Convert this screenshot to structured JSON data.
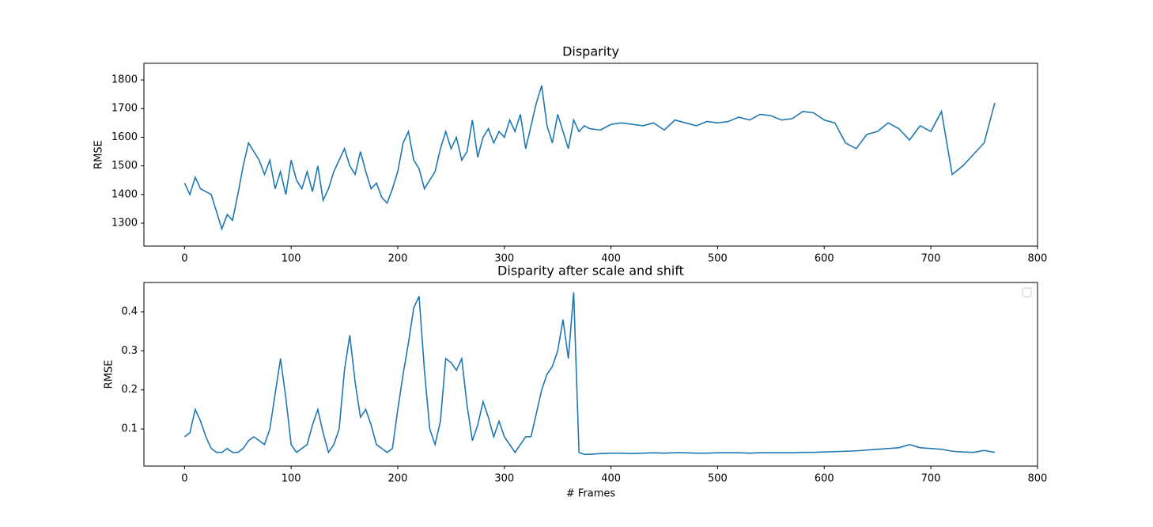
{
  "chart_data": [
    {
      "type": "line",
      "title": "Disparity",
      "y_label": "RMSE",
      "color": "#1f77b4",
      "xlim": [
        -38.1,
        800.1
      ],
      "xticks": [
        0,
        100,
        200,
        300,
        400,
        500,
        600,
        700,
        800
      ],
      "ylim": [
        1220,
        1858
      ],
      "yticks": [
        1300,
        1400,
        1500,
        1600,
        1700,
        1800
      ],
      "x": [
        0,
        5,
        10,
        15,
        20,
        25,
        30,
        35,
        40,
        45,
        50,
        55,
        60,
        65,
        70,
        75,
        80,
        85,
        90,
        95,
        100,
        105,
        110,
        115,
        120,
        125,
        130,
        135,
        140,
        145,
        150,
        155,
        160,
        165,
        170,
        175,
        180,
        185,
        190,
        195,
        200,
        205,
        210,
        215,
        220,
        225,
        230,
        235,
        240,
        245,
        250,
        255,
        260,
        265,
        270,
        275,
        280,
        285,
        290,
        295,
        300,
        305,
        310,
        315,
        320,
        325,
        330,
        335,
        340,
        345,
        350,
        355,
        360,
        365,
        370,
        375,
        380,
        390,
        400,
        410,
        420,
        430,
        440,
        450,
        460,
        470,
        480,
        490,
        500,
        510,
        520,
        530,
        540,
        550,
        560,
        570,
        580,
        590,
        600,
        610,
        620,
        630,
        640,
        650,
        660,
        670,
        680,
        690,
        700,
        710,
        720,
        730,
        740,
        750,
        760
      ],
      "values": [
        1440,
        1400,
        1460,
        1420,
        1410,
        1400,
        1340,
        1280,
        1330,
        1310,
        1400,
        1500,
        1580,
        1550,
        1520,
        1470,
        1520,
        1420,
        1480,
        1400,
        1520,
        1450,
        1420,
        1480,
        1410,
        1500,
        1380,
        1420,
        1480,
        1520,
        1560,
        1500,
        1470,
        1550,
        1480,
        1420,
        1440,
        1390,
        1370,
        1420,
        1480,
        1580,
        1620,
        1520,
        1490,
        1420,
        1450,
        1480,
        1560,
        1620,
        1560,
        1600,
        1520,
        1550,
        1660,
        1530,
        1600,
        1630,
        1580,
        1620,
        1600,
        1660,
        1620,
        1680,
        1560,
        1640,
        1720,
        1780,
        1640,
        1580,
        1680,
        1620,
        1560,
        1660,
        1620,
        1640,
        1630,
        1625,
        1645,
        1650,
        1645,
        1640,
        1650,
        1625,
        1660,
        1650,
        1640,
        1655,
        1650,
        1655,
        1670,
        1660,
        1680,
        1675,
        1660,
        1665,
        1690,
        1685,
        1660,
        1650,
        1580,
        1560,
        1610,
        1620,
        1650,
        1630,
        1590,
        1640,
        1620,
        1690,
        1470,
        1500,
        1540,
        1580,
        1720
      ]
    },
    {
      "type": "line",
      "title": "Disparity after scale and shift",
      "y_label": "RMSE",
      "x_label": "# Frames",
      "color": "#1f77b4",
      "legend": "upper right",
      "xlim": [
        -38.1,
        800.1
      ],
      "xticks": [
        0,
        100,
        200,
        300,
        400,
        500,
        600,
        700,
        800
      ],
      "ylim": [
        0.005,
        0.475
      ],
      "yticks": [
        0.1,
        0.2,
        0.3,
        0.4
      ],
      "x": [
        0,
        5,
        10,
        15,
        20,
        25,
        30,
        35,
        40,
        45,
        50,
        55,
        60,
        65,
        70,
        75,
        80,
        85,
        90,
        95,
        100,
        105,
        110,
        115,
        120,
        125,
        130,
        135,
        140,
        145,
        150,
        155,
        160,
        165,
        170,
        175,
        180,
        185,
        190,
        195,
        200,
        205,
        210,
        215,
        220,
        225,
        230,
        235,
        240,
        245,
        250,
        255,
        260,
        265,
        270,
        275,
        280,
        285,
        290,
        295,
        300,
        305,
        310,
        315,
        320,
        325,
        330,
        335,
        340,
        345,
        350,
        355,
        360,
        365,
        370,
        375,
        380,
        390,
        400,
        410,
        420,
        430,
        440,
        450,
        460,
        470,
        480,
        490,
        500,
        510,
        520,
        530,
        540,
        550,
        560,
        570,
        580,
        590,
        600,
        610,
        620,
        630,
        640,
        650,
        660,
        670,
        680,
        690,
        700,
        710,
        720,
        730,
        740,
        750,
        760
      ],
      "values": [
        0.08,
        0.09,
        0.15,
        0.12,
        0.08,
        0.05,
        0.04,
        0.04,
        0.05,
        0.04,
        0.04,
        0.05,
        0.07,
        0.08,
        0.07,
        0.06,
        0.1,
        0.19,
        0.28,
        0.18,
        0.06,
        0.04,
        0.05,
        0.06,
        0.11,
        0.15,
        0.09,
        0.04,
        0.06,
        0.1,
        0.25,
        0.34,
        0.22,
        0.13,
        0.15,
        0.11,
        0.06,
        0.05,
        0.04,
        0.05,
        0.15,
        0.24,
        0.32,
        0.41,
        0.44,
        0.25,
        0.1,
        0.06,
        0.12,
        0.28,
        0.27,
        0.25,
        0.28,
        0.16,
        0.07,
        0.11,
        0.17,
        0.13,
        0.08,
        0.12,
        0.08,
        0.06,
        0.04,
        0.06,
        0.08,
        0.08,
        0.14,
        0.2,
        0.24,
        0.26,
        0.3,
        0.38,
        0.28,
        0.45,
        0.04,
        0.035,
        0.035,
        0.037,
        0.038,
        0.038,
        0.037,
        0.038,
        0.039,
        0.038,
        0.039,
        0.039,
        0.038,
        0.038,
        0.039,
        0.039,
        0.039,
        0.038,
        0.039,
        0.039,
        0.039,
        0.039,
        0.04,
        0.04,
        0.041,
        0.042,
        0.043,
        0.044,
        0.046,
        0.048,
        0.05,
        0.052,
        0.06,
        0.052,
        0.05,
        0.048,
        0.043,
        0.041,
        0.04,
        0.045,
        0.04
      ]
    }
  ]
}
